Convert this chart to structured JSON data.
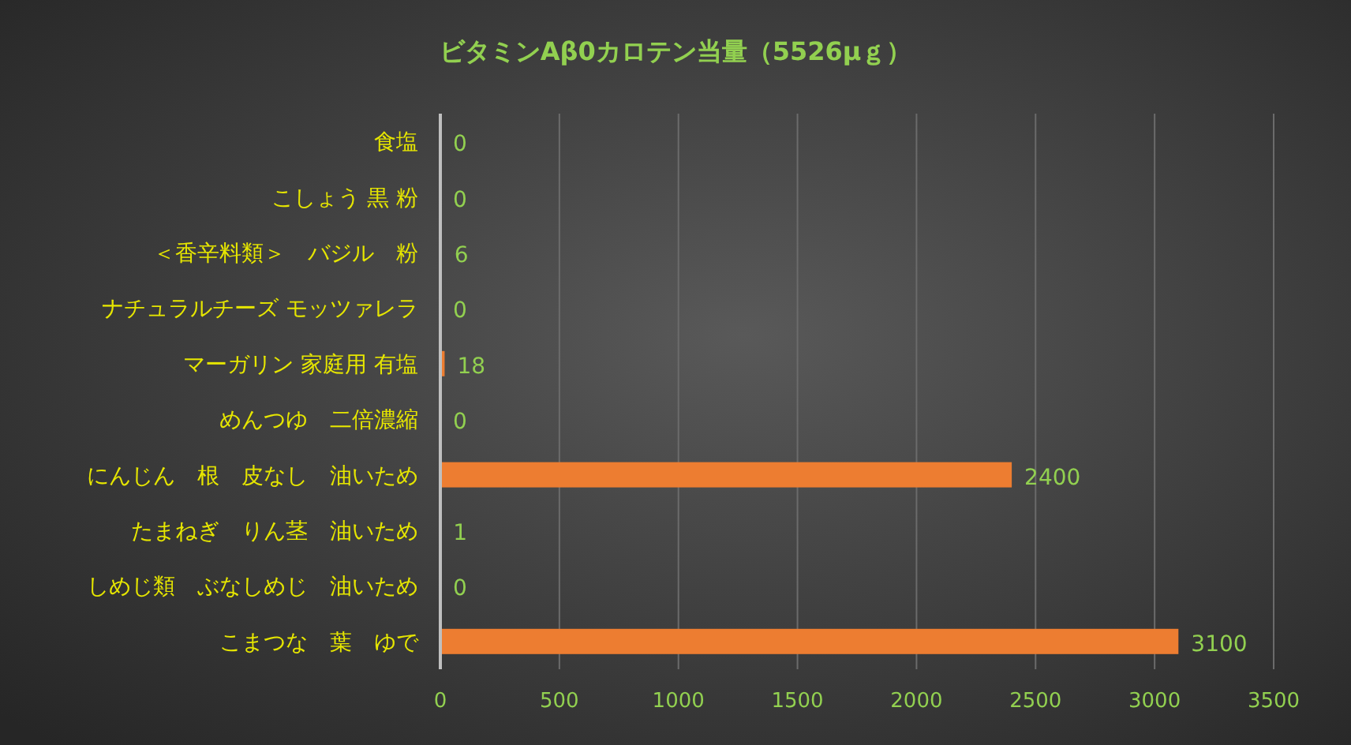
{
  "chart_data": {
    "type": "bar",
    "orientation": "horizontal",
    "title": "ビタミンAβ0カロテン当量（5526μｇ）",
    "categories": [
      "食塩",
      "こしょう 黒 粉",
      "＜香辛料類＞　バジル　粉",
      "ナチュラルチーズ モッツァレラ",
      "マーガリン 家庭用 有塩",
      "めんつゆ　二倍濃縮",
      "にんじん　根　皮なし　油いため",
      "たまねぎ　りん茎　油いため",
      "しめじ類　ぶなしめじ　油いため",
      "こまつな　葉　ゆで"
    ],
    "values": [
      0,
      0,
      6,
      0,
      18,
      0,
      2400,
      1,
      0,
      3100
    ],
    "color": "#ed7d31",
    "xlim": [
      0,
      3500
    ],
    "xticks": [
      0,
      500,
      1000,
      1500,
      2000,
      2500,
      3000,
      3500
    ],
    "grid": "x",
    "data_labels": true
  }
}
